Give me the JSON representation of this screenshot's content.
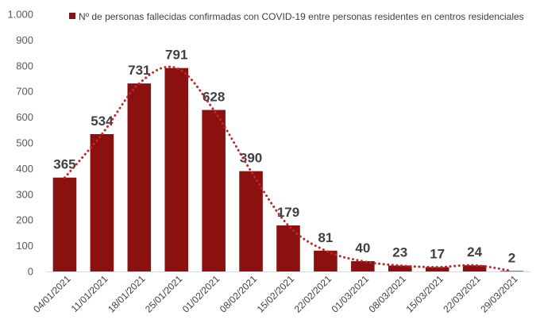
{
  "chart_data": {
    "type": "bar",
    "categories": [
      "04/01/2021",
      "11/01/2021",
      "18/01/2021",
      "25/01/2021",
      "01/02/2021",
      "08/02/2021",
      "15/02/2021",
      "22/02/2021",
      "01/03/2021",
      "08/03/2021",
      "15/03/2021",
      "22/03/2021",
      "29/03/2021"
    ],
    "series": [
      {
        "name": "Nº de personas fallecidas confirmadas con COVID-19 entre personas residentes en centros residenciales",
        "values": [
          365,
          534,
          731,
          791,
          628,
          390,
          179,
          81,
          40,
          23,
          17,
          24,
          2
        ],
        "value_labels": [
          "365",
          "534",
          "731",
          "791",
          "628",
          "390",
          "179",
          "81",
          "40",
          "23",
          "17",
          "24",
          "2"
        ]
      }
    ],
    "trendline": "dotted smoothed curve",
    "ylim": [
      0,
      1000
    ],
    "yticks": [
      0,
      100,
      200,
      300,
      400,
      500,
      600,
      700,
      800,
      900,
      1000
    ],
    "ytick_labels": [
      "0",
      "100",
      "200",
      "300",
      "400",
      "500",
      "600",
      "700",
      "800",
      "900",
      "1.000"
    ],
    "grid": false,
    "legend_position": "top",
    "xlabel": "",
    "ylabel": ""
  },
  "colors": {
    "bar": "#8b1010",
    "trendline": "#c0282a",
    "text": "#404040"
  }
}
